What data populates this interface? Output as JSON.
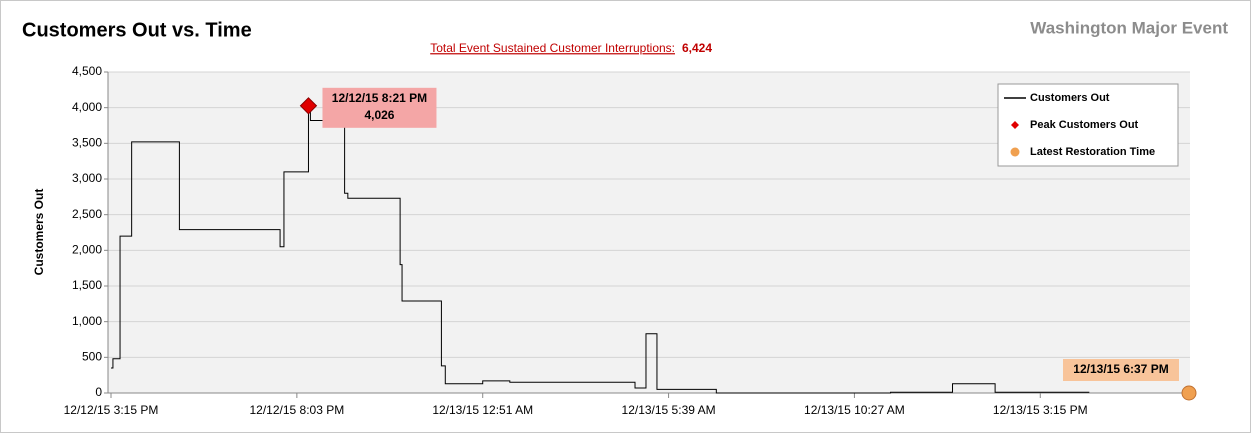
{
  "chart_data": {
    "type": "step",
    "title": "Customers Out vs. Time",
    "subtitle": "Washington Major Event",
    "summary": {
      "label": "Total Event Sustained Customer Interruptions:",
      "value": "6,424"
    },
    "ylabel": "Customers Out",
    "xlim": [
      "12/12/15 3:15 PM",
      "12/13/15 7:07 PM"
    ],
    "xticks": [
      "12/12/15 3:15 PM",
      "12/12/15 8:03 PM",
      "12/13/15 12:51 AM",
      "12/13/15 5:39 AM",
      "12/13/15 10:27 AM",
      "12/13/15 3:15 PM"
    ],
    "ylim": [
      0,
      4500
    ],
    "yticks": [
      0,
      500,
      {
        "value": 1000,
        "label": "1,000"
      },
      {
        "value": 1500,
        "label": "1,500"
      },
      {
        "value": 2000,
        "label": "2,000"
      },
      {
        "value": 2500,
        "label": "2,500"
      },
      {
        "value": 3000,
        "label": "3,000"
      },
      {
        "value": 3500,
        "label": "3,500"
      },
      {
        "value": 4000,
        "label": "4,000"
      },
      {
        "value": 4500,
        "label": "4,500"
      }
    ],
    "grid": true,
    "legend": "upper right",
    "series": [
      {
        "name": "Customers Out",
        "color": "#000000",
        "x": [
          "12/12/15 3:15 PM",
          "12/12/15 3:18 PM",
          "12/12/15 3:29 PM",
          "12/12/15 3:47 PM",
          "12/12/15 5:01 PM",
          "12/12/15 7:37 PM",
          "12/12/15 7:43 PM",
          "12/12/15 8:21 PM",
          "12/12/15 8:24 PM",
          "12/12/15 9:17 PM",
          "12/12/15 9:22 PM",
          "12/12/15 10:43 PM",
          "12/12/15 10:46 PM",
          "12/12/15 11:47 PM",
          "12/12/15 11:53 PM",
          "12/13/15 12:51 AM",
          "12/13/15 1:33 AM",
          "12/13/15 4:47 AM",
          "12/13/15 5:04 AM",
          "12/13/15 5:21 AM",
          "12/13/15 6:53 AM",
          "12/13/15 11:23 AM",
          "12/13/15 12:59 PM",
          "12/13/15 2:05 PM",
          "12/13/15 4:31 PM"
        ],
        "values": [
          350,
          480,
          2200,
          3520,
          2290,
          2050,
          3100,
          4026,
          3820,
          2800,
          2730,
          1800,
          1290,
          380,
          130,
          170,
          150,
          70,
          830,
          50,
          0,
          10,
          130,
          10,
          10
        ]
      },
      {
        "name": "Peak Customers Out",
        "color": "#e00000",
        "x": [
          "12/12/15 8:21 PM"
        ],
        "values": [
          4026
        ],
        "value_labels": [
          "4,026"
        ]
      },
      {
        "name": "Latest Restoration Time",
        "color": "#f0a050",
        "x": [
          "12/13/15 6:37 PM"
        ],
        "values": [
          0
        ]
      }
    ]
  }
}
